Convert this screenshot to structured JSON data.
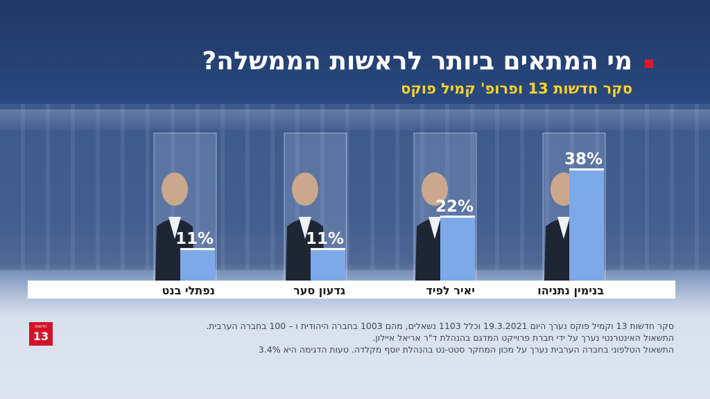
{
  "title": "מי המתאים ביותר לראשות הממשלה?",
  "subtitle": "סקר חדשות 13 ופרופ' קמיל פוקס",
  "colors": {
    "bar": "#7ea9e8",
    "bullet": "#e0162b",
    "subtitle": "#ffd42a"
  },
  "logo": {
    "top_text": "חדשות",
    "number": "13"
  },
  "footer": {
    "line1": "סקר חדשות 13 וקמיל פוקס נערך היום 19.3.2021 וכלל 1103 נשאלים, מהם 1003 בחברה היהודית ו – 100 בחברה הערבית.",
    "line2": "התשאול  האינטרנטי נערך על ידי חברת פרוייקט המדגם בהנהלת   ד\"ר אריאל איילון.",
    "line3": "התשאול  הטלפוני בחברה הערבית נערך על מכון המחקר סטט-נט בהנהלת יוסף מקלדה. טעות הדגימה היא 3.4%"
  },
  "chart_data": {
    "type": "bar",
    "categories": [
      "נפתלי בנט",
      "גדעון סער",
      "יאיר לפיד",
      "בנימין נתניהו"
    ],
    "values": [
      11,
      11,
      22,
      38
    ],
    "value_labels": [
      "11%",
      "11%",
      "22%",
      "38%"
    ],
    "ylim": [
      0,
      50
    ],
    "grid": false,
    "legend": "none"
  }
}
